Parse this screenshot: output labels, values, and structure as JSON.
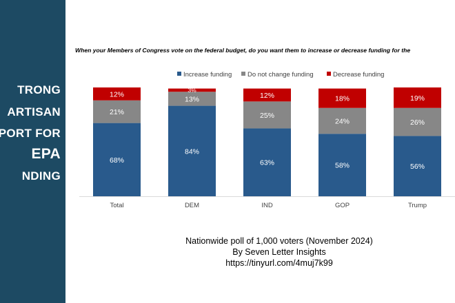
{
  "side_panel": {
    "lines": [
      "TRONG",
      "ARTISAN",
      "PPORT FOR",
      "EPA",
      "NDING"
    ]
  },
  "question": "When your Members of Congress vote on the federal budget, do you want them to increase or decrease funding for the",
  "chart_data": {
    "type": "bar",
    "stacked": true,
    "title": "When your Members of Congress vote on the federal budget, do you want them to increase or decrease funding for the",
    "categories": [
      "Total",
      "DEM",
      "IND",
      "GOP",
      "Trump"
    ],
    "series": [
      {
        "name": "Increase funding",
        "color": "#295a8c",
        "values": [
          68,
          84,
          63,
          58,
          56
        ]
      },
      {
        "name": "Do not change funding",
        "color": "#878787",
        "values": [
          21,
          13,
          25,
          24,
          26
        ]
      },
      {
        "name": "Decrease funding",
        "color": "#c00000",
        "values": [
          12,
          3,
          12,
          18,
          19
        ]
      }
    ],
    "ylim": [
      0,
      101
    ],
    "value_suffix": "%",
    "legend_position": "top",
    "grid": false
  },
  "footer": {
    "line1": "Nationwide poll of 1,000 voters (November 2024)",
    "line2": "By Seven Letter Insights",
    "line3": "https://tinyurl.com/4muj7k99"
  }
}
